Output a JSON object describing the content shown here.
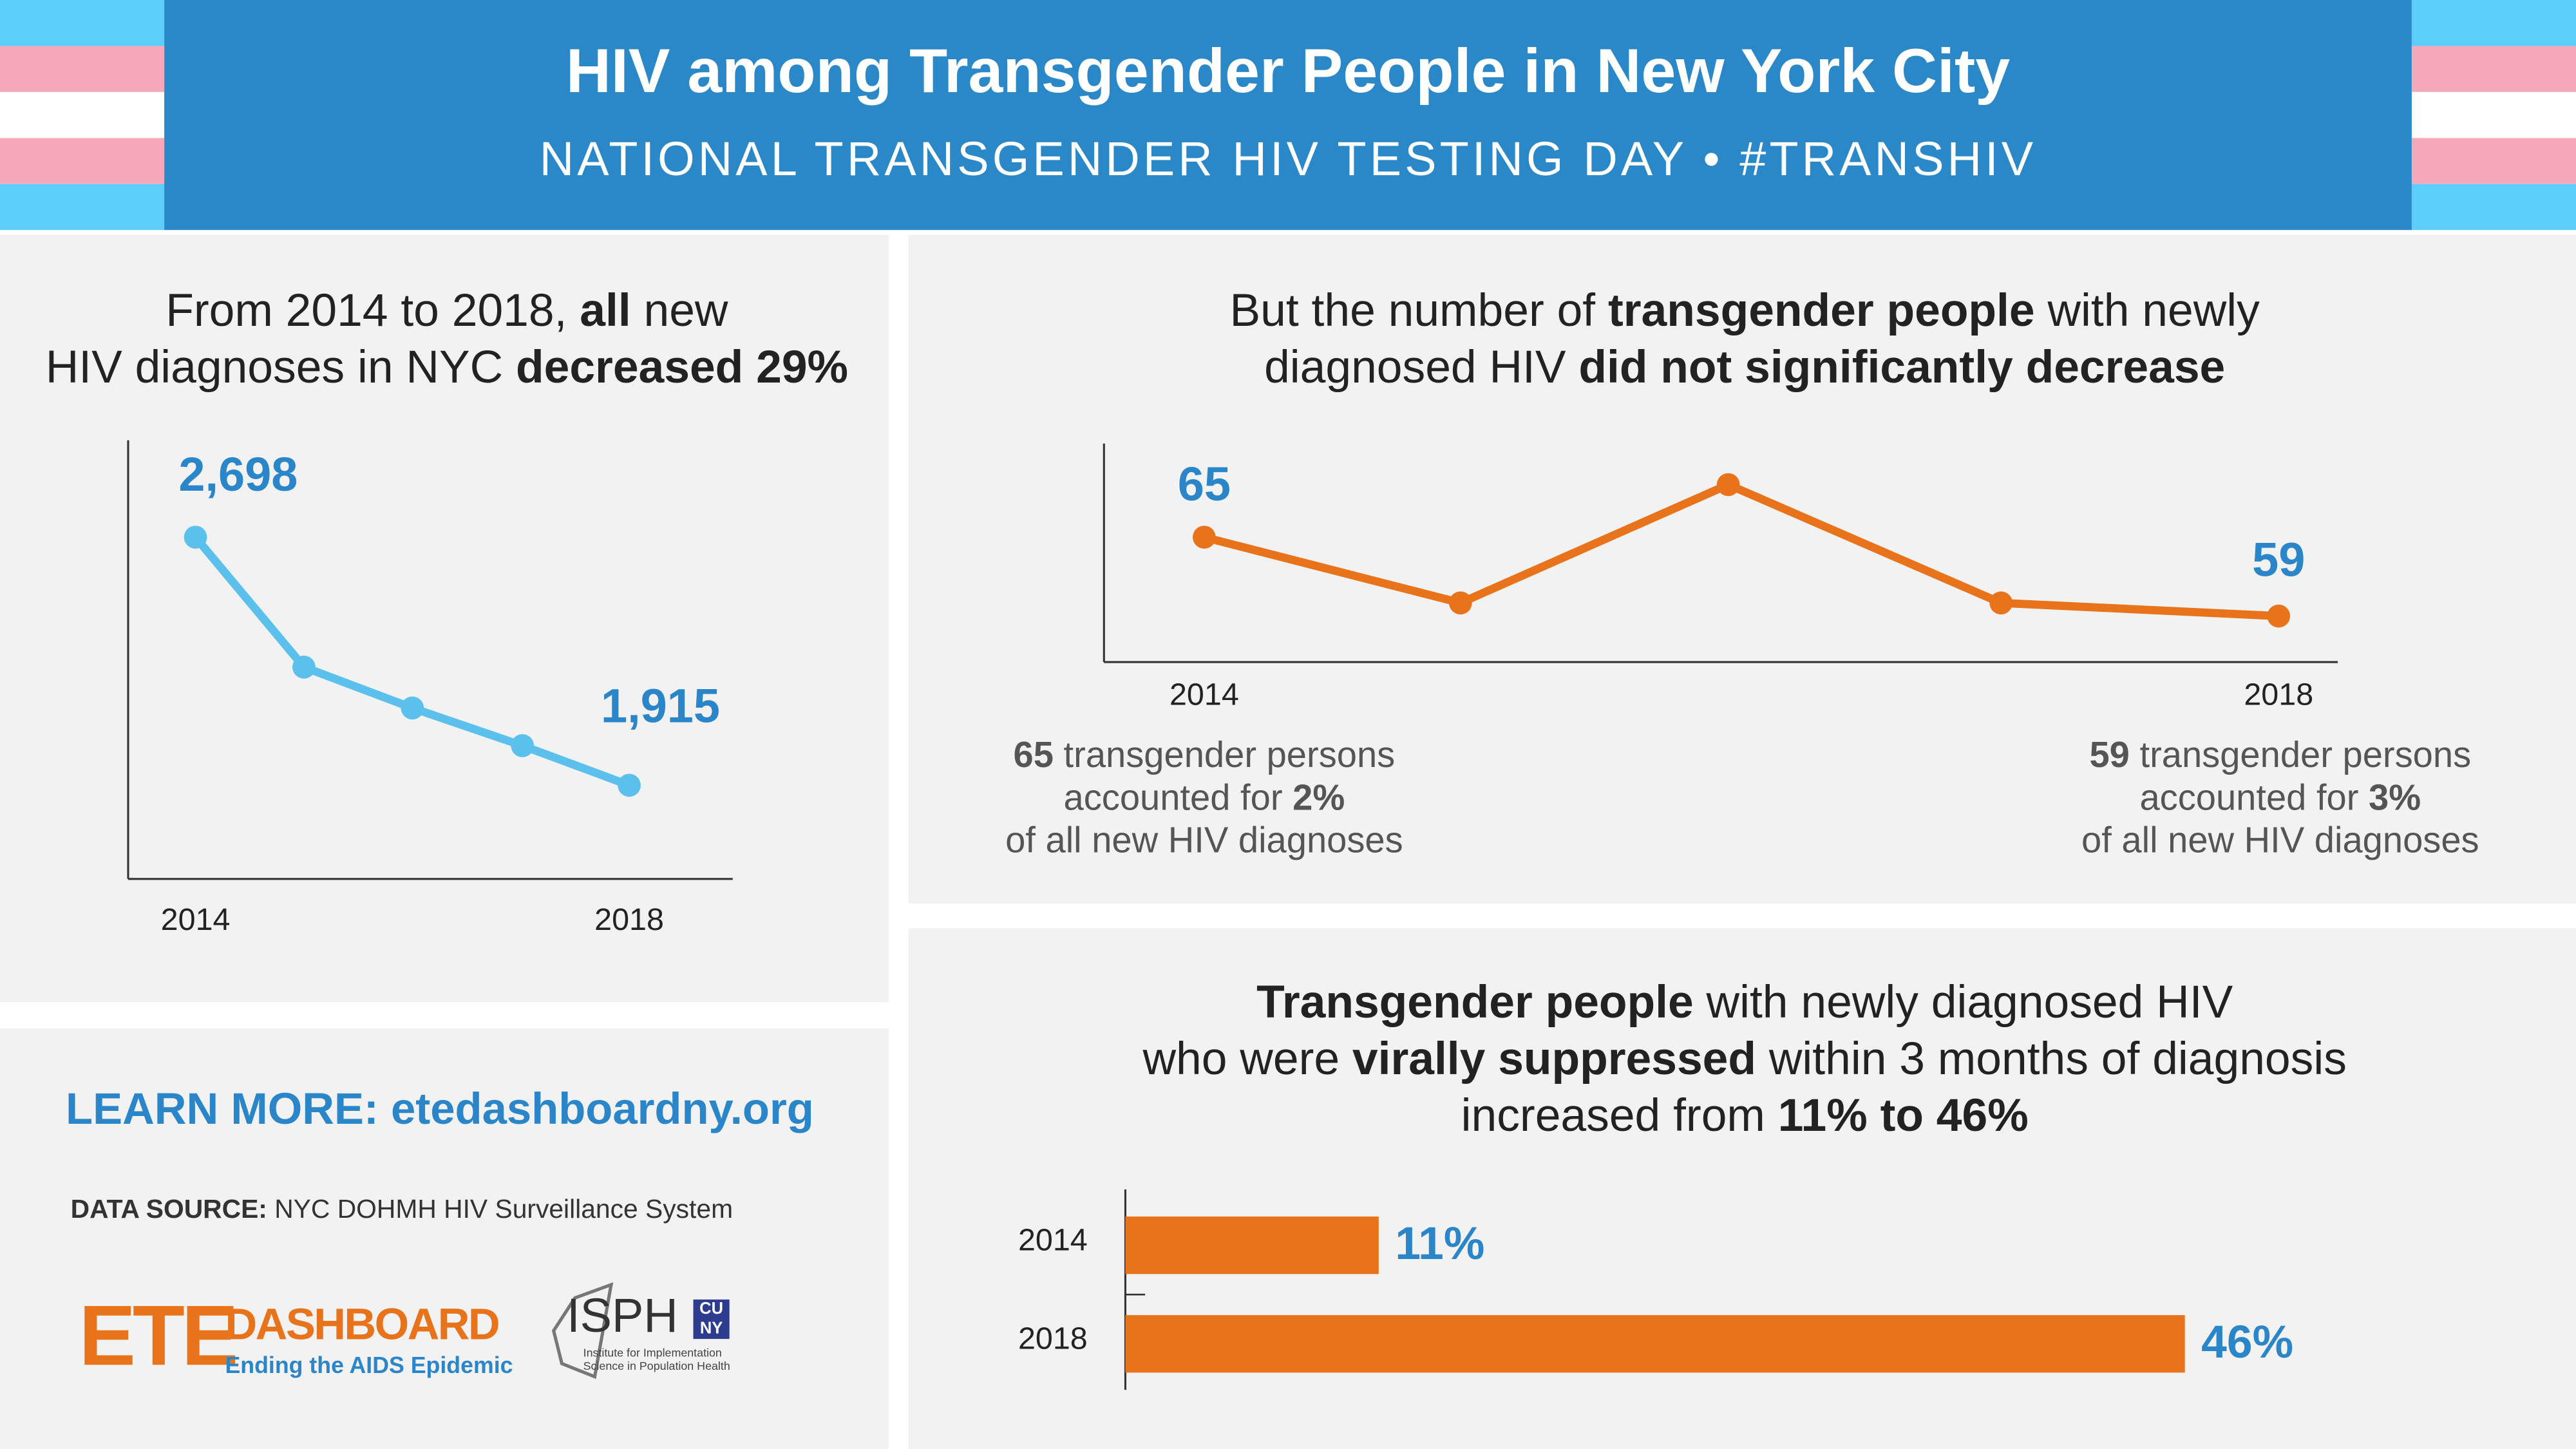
{
  "header": {
    "title": "HIV among Transgender People in New York City",
    "subtitle": "NATIONAL TRANSGENDER HIV TESTING DAY • #TRANSHIV"
  },
  "chart_data": [
    {
      "type": "line",
      "title_lines": [
        [
          {
            "text": "From 2014 to 2018, "
          },
          {
            "text": "all",
            "bold": true
          },
          {
            "text": " new"
          }
        ],
        [
          {
            "text": "HIV diagnoses in NYC "
          },
          {
            "text": "decreased 29%",
            "bold": true
          }
        ]
      ],
      "categories": [
        "2014",
        null,
        null,
        null,
        "2018"
      ],
      "values": [
        2698,
        2288,
        2159,
        2040,
        1915
      ],
      "value_labels": [
        "2,698",
        null,
        null,
        null,
        "1,915"
      ],
      "color": "#5bc0eb",
      "label_color": "#2a86c9"
    },
    {
      "type": "line",
      "title_lines": [
        [
          {
            "text": "But the number of "
          },
          {
            "text": "transgender people",
            "bold": true
          },
          {
            "text": " with newly"
          }
        ],
        [
          {
            "text": "diagnosed HIV "
          },
          {
            "text": "did not significantly decrease",
            "bold": true
          }
        ]
      ],
      "categories": [
        "2014",
        null,
        null,
        null,
        "2018"
      ],
      "values": [
        65,
        60,
        69,
        60,
        59
      ],
      "value_labels": [
        "65",
        null,
        null,
        null,
        "59"
      ],
      "color": "#e8731a",
      "label_color": "#2a86c9",
      "annotations": [
        [
          [
            {
              "text": "65",
              "bold": true
            },
            {
              "text": " transgender persons"
            }
          ],
          [
            {
              "text": "accounted for "
            },
            {
              "text": "2%",
              "bold": true
            }
          ],
          [
            {
              "text": "of all new HIV diagnoses"
            }
          ]
        ],
        [
          [
            {
              "text": "59",
              "bold": true
            },
            {
              "text": " transgender persons"
            }
          ],
          [
            {
              "text": "accounted for "
            },
            {
              "text": "3%",
              "bold": true
            }
          ],
          [
            {
              "text": "of all new HIV diagnoses"
            }
          ]
        ]
      ]
    },
    {
      "type": "bar",
      "orientation": "horizontal",
      "title_lines": [
        [
          {
            "text": "Transgender people",
            "bold": true
          },
          {
            "text": " with newly diagnosed HIV"
          }
        ],
        [
          {
            "text": "who were "
          },
          {
            "text": "virally suppressed",
            "bold": true
          },
          {
            "text": " within 3 months of diagnosis"
          }
        ],
        [
          {
            "text": "increased from "
          },
          {
            "text": "11% to 46%",
            "bold": true
          }
        ]
      ],
      "categories": [
        "2014",
        "2018"
      ],
      "values": [
        11,
        46
      ],
      "value_labels": [
        "11%",
        "46%"
      ],
      "color": "#e8731a",
      "label_color": "#2a86c9"
    }
  ],
  "learn_more": "LEARN MORE: etedashboardny.org",
  "data_source": {
    "label": "DATA SOURCE:",
    "text": " NYC DOHMH HIV Surveillance System"
  },
  "logos": {
    "ete": {
      "mark": "ETE",
      "name": "DASHBOARD",
      "tagline": "Ending the AIDS Epidemic"
    },
    "isph": {
      "mark": "ISPH",
      "cuny": [
        "CU",
        "NY"
      ],
      "tagline": [
        "Institute for Implementation",
        "Science in Population Health"
      ]
    }
  }
}
